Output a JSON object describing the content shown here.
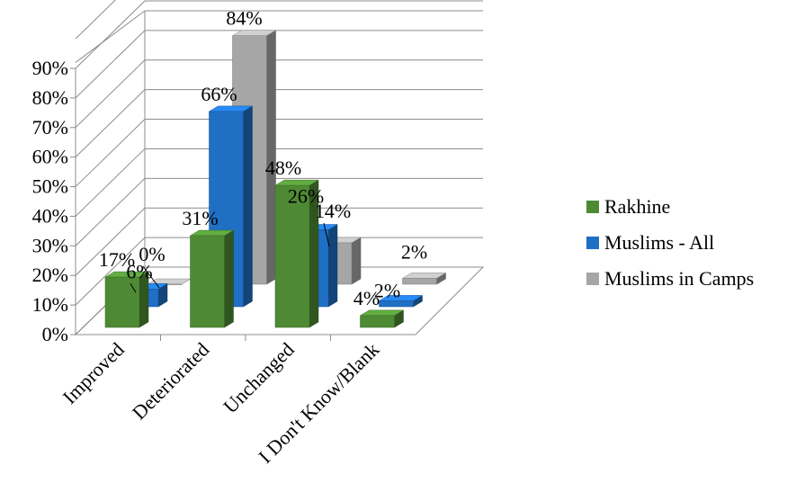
{
  "chart_data": {
    "type": "bar",
    "title": "",
    "xlabel": "",
    "ylabel": "",
    "ylim": [
      0,
      90
    ],
    "y_ticks": [
      "0%",
      "10%",
      "20%",
      "30%",
      "40%",
      "50%",
      "60%",
      "70%",
      "80%",
      "90%"
    ],
    "categories": [
      "Improved",
      "Deteriorated",
      "Unchanged",
      "I Don't Know/Blank"
    ],
    "series": [
      {
        "name": "Rakhine",
        "color": "#4e8a34",
        "values": [
          17,
          31,
          48,
          4
        ],
        "labels": [
          "17%",
          "31%",
          "48%",
          "4%"
        ]
      },
      {
        "name": "Muslims - All",
        "color": "#1f6fc5",
        "values": [
          6,
          66,
          26,
          2
        ],
        "labels": [
          "6%",
          "66%",
          "26%",
          "2%"
        ]
      },
      {
        "name": "Muslims in Camps",
        "color": "#a6a6a6",
        "values": [
          0,
          84,
          14,
          2
        ],
        "labels": [
          "0%",
          "84%",
          "14%",
          "2%"
        ]
      }
    ],
    "grid": true,
    "legend_position": "right",
    "style": "3d-clustered-column"
  }
}
